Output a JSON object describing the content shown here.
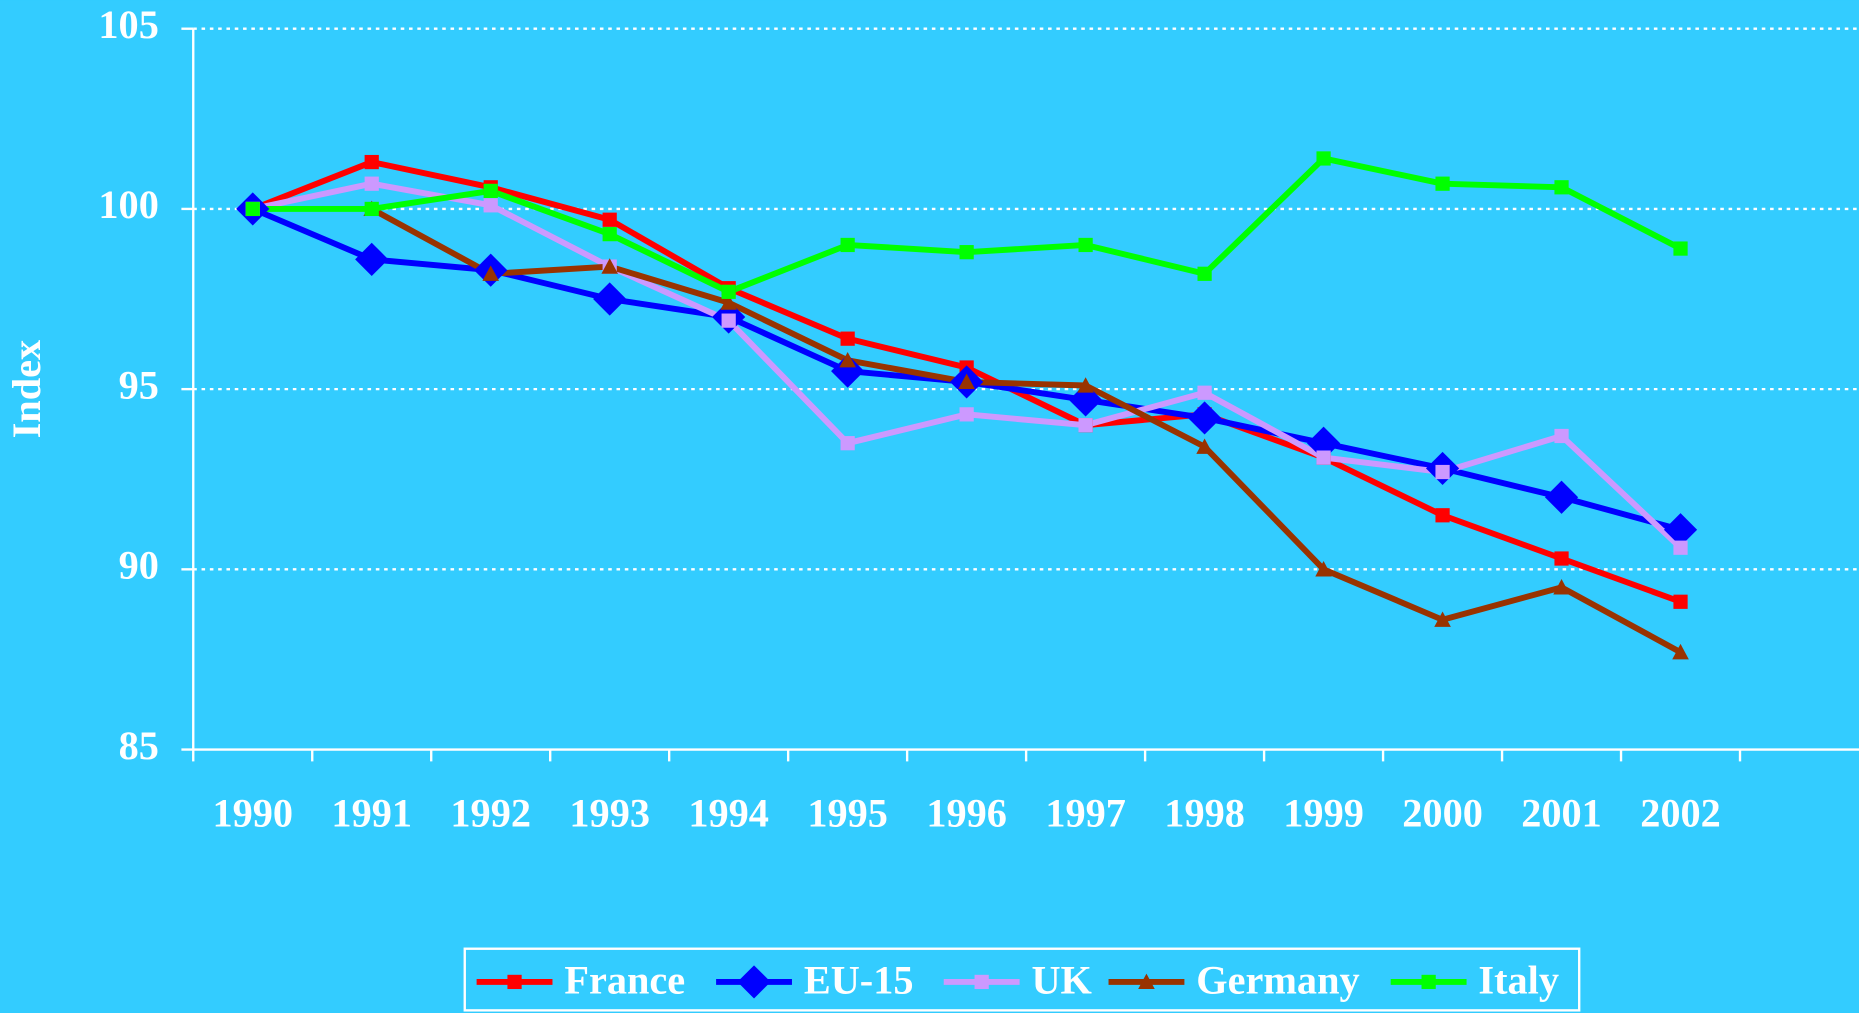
{
  "chart_data": {
    "type": "line",
    "y_label": "Index",
    "categories": [
      "1990",
      "1991",
      "1992",
      "1993",
      "1994",
      "1995",
      "1996",
      "1997",
      "1998",
      "1999",
      "2000",
      "2001",
      "2002",
      null
    ],
    "series": [
      {
        "name": "France",
        "color": "#ff0000",
        "marker": "square",
        "values": [
          100,
          101.3,
          100.6,
          99.7,
          97.8,
          96.4,
          95.6,
          94.0,
          94.3,
          93.1,
          91.5,
          90.3,
          89.1,
          null
        ]
      },
      {
        "name": "EU-15",
        "color": "#0000ff",
        "marker": "diamond",
        "values": [
          100,
          98.6,
          98.3,
          97.5,
          97.0,
          95.5,
          95.2,
          94.7,
          94.2,
          93.5,
          92.8,
          92.0,
          91.1,
          null
        ]
      },
      {
        "name": "UK",
        "color": "#cc99ff",
        "marker": "square",
        "values": [
          100,
          100.7,
          100.1,
          98.4,
          96.9,
          93.5,
          94.3,
          94.0,
          94.9,
          93.1,
          92.7,
          93.7,
          90.6,
          null
        ]
      },
      {
        "name": "Germany",
        "color": "#993300",
        "marker": "triangle",
        "values": [
          null,
          100,
          98.2,
          98.4,
          97.4,
          95.8,
          95.2,
          95.1,
          93.4,
          90.0,
          88.6,
          89.5,
          87.7,
          null
        ]
      },
      {
        "name": "Italy",
        "color": "#00ff00",
        "marker": "square",
        "values": [
          100,
          100,
          100.5,
          99.3,
          97.7,
          99.0,
          98.8,
          99.0,
          98.2,
          101.4,
          100.7,
          100.6,
          98.9,
          null
        ]
      }
    ],
    "ylim": [
      85,
      105
    ],
    "yticks": [
      85,
      90,
      95,
      100,
      105
    ],
    "grid": true,
    "legend": "bottom"
  }
}
